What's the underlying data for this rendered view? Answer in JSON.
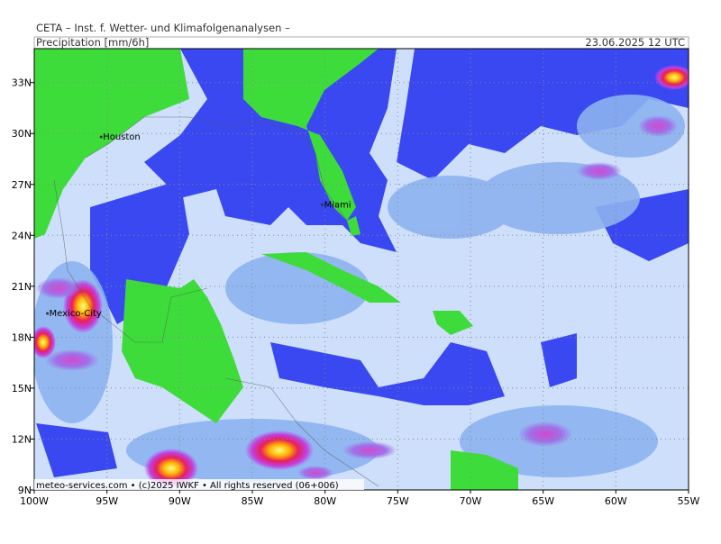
{
  "header": {
    "title": "CETA – Inst. f. Wetter- und Klimafolgenanalysen –",
    "product": "Precipitation [mm/6h]",
    "valid": "23.06.2025 12 UTC"
  },
  "map": {
    "lon_range": [
      -100,
      -55
    ],
    "lat_range": [
      9,
      35
    ],
    "lon_ticks": [
      {
        "value": -100,
        "label": "100W"
      },
      {
        "value": -95,
        "label": "95W"
      },
      {
        "value": -90,
        "label": "90W"
      },
      {
        "value": -85,
        "label": "85W"
      },
      {
        "value": -80,
        "label": "80W"
      },
      {
        "value": -75,
        "label": "75W"
      },
      {
        "value": -70,
        "label": "70W"
      },
      {
        "value": -65,
        "label": "65W"
      },
      {
        "value": -60,
        "label": "60W"
      },
      {
        "value": -55,
        "label": "55W"
      }
    ],
    "lat_ticks": [
      {
        "value": 9,
        "label": "9N"
      },
      {
        "value": 12,
        "label": "12N"
      },
      {
        "value": 15,
        "label": "15N"
      },
      {
        "value": 18,
        "label": "18N"
      },
      {
        "value": 21,
        "label": "21N"
      },
      {
        "value": 24,
        "label": "24N"
      },
      {
        "value": 27,
        "label": "27N"
      },
      {
        "value": 30,
        "label": "30N"
      },
      {
        "value": 33,
        "label": "33N"
      }
    ],
    "cities": [
      {
        "name": "Houston",
        "lon": -95.4,
        "lat": 29.8
      },
      {
        "name": "Miami",
        "lon": -80.2,
        "lat": 25.8
      },
      {
        "name": "Mexico-City",
        "lon": -99.1,
        "lat": 19.4
      }
    ],
    "credit": "meteo-services.com • (c)2025 IWKF • All rights reserved (06+006)"
  }
}
